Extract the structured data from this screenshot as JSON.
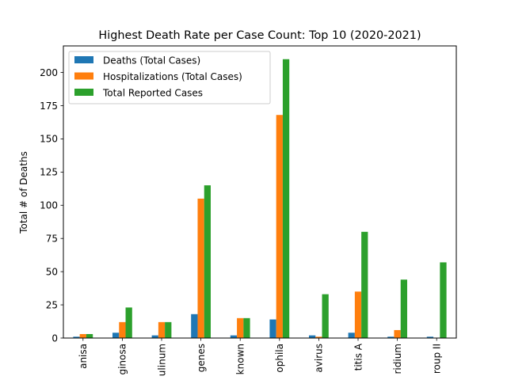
{
  "chart_data": {
    "type": "bar",
    "title": "Highest Death Rate per Case Count: Top 10 (2020-2021)",
    "xlabel": "",
    "ylabel": "Total # of Deaths",
    "ylim": [
      0,
      220
    ],
    "yticks": [
      0,
      25,
      50,
      75,
      100,
      125,
      150,
      175,
      200
    ],
    "grid": false,
    "legend_position": "top-left",
    "categories": [
      "anisa",
      "ginosa",
      "ulinum",
      "genes",
      "known",
      "ophila",
      "avirus",
      "titis A",
      "ridium",
      "roup II"
    ],
    "series": [
      {
        "name": "Deaths (Total Cases)",
        "color": "#1f77b4",
        "values": [
          1,
          4,
          2,
          18,
          2,
          14,
          2,
          4,
          1,
          1
        ]
      },
      {
        "name": "Hospitalizations (Total Cases)",
        "color": "#ff7f0e",
        "values": [
          3,
          12,
          12,
          105,
          15,
          168,
          1,
          35,
          6,
          0
        ]
      },
      {
        "name": "Total Reported Cases",
        "color": "#2ca02c",
        "values": [
          3,
          23,
          12,
          115,
          15,
          210,
          33,
          80,
          44,
          57
        ]
      }
    ]
  }
}
